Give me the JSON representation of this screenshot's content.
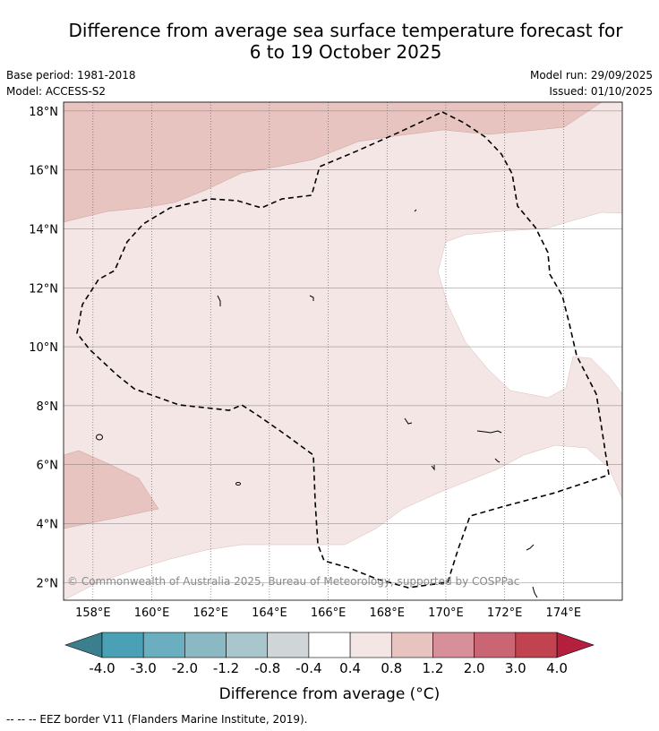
{
  "title_line1": "Difference from average sea surface temperature forecast for",
  "title_line2": "6 to 19 October 2025",
  "base_period": "Base period: 1981-2018",
  "model": "Model: ACCESS-S2",
  "model_run": "Model run: 29/09/2025",
  "issued": "Issued: 01/10/2025",
  "copyright": "© Commonwealth of Australia 2025, Bureau of Meteorology, supported by COSPPac",
  "footnote": "--  --  -- EEZ border V11 (Flanders Marine Institute, 2019).",
  "map": {
    "lon_ticks": [
      {
        "v": 158,
        "label": "158°E"
      },
      {
        "v": 160,
        "label": "160°E"
      },
      {
        "v": 162,
        "label": "162°E"
      },
      {
        "v": 164,
        "label": "164°E"
      },
      {
        "v": 166,
        "label": "166°E"
      },
      {
        "v": 168,
        "label": "168°E"
      },
      {
        "v": 170,
        "label": "170°E"
      },
      {
        "v": 172,
        "label": "172°E"
      },
      {
        "v": 174,
        "label": "174°E"
      }
    ],
    "lat_ticks": [
      {
        "v": 2,
        "label": "2°N"
      },
      {
        "v": 4,
        "label": "4°N"
      },
      {
        "v": 6,
        "label": "6°N"
      },
      {
        "v": 8,
        "label": "8°N"
      },
      {
        "v": 10,
        "label": "10°N"
      },
      {
        "v": 12,
        "label": "12°N"
      },
      {
        "v": 14,
        "label": "14°N"
      },
      {
        "v": 16,
        "label": "16°N"
      },
      {
        "v": 18,
        "label": "18°N"
      }
    ],
    "lon_range": [
      157,
      176
    ],
    "lat_range": [
      1.4,
      18.3
    ],
    "grid": true
  },
  "colorbar": {
    "label": "Difference from average (°C)",
    "ticks": [
      "-4.0",
      "-3.0",
      "-2.0",
      "-1.2",
      "-0.8",
      "-0.4",
      "0.4",
      "0.8",
      "1.2",
      "2.0",
      "3.0",
      "4.0"
    ],
    "under_color": "#3b7f8e",
    "over_color": "#b41f3e",
    "colors": [
      "#4aa0b4",
      "#6aaebf",
      "#8ab9c4",
      "#a8c6cb",
      "#d0d6d8",
      "#ffffff",
      "#f4e6e4",
      "#e8c4c0",
      "#d78f99",
      "#ca6674",
      "#c0434f"
    ]
  }
}
